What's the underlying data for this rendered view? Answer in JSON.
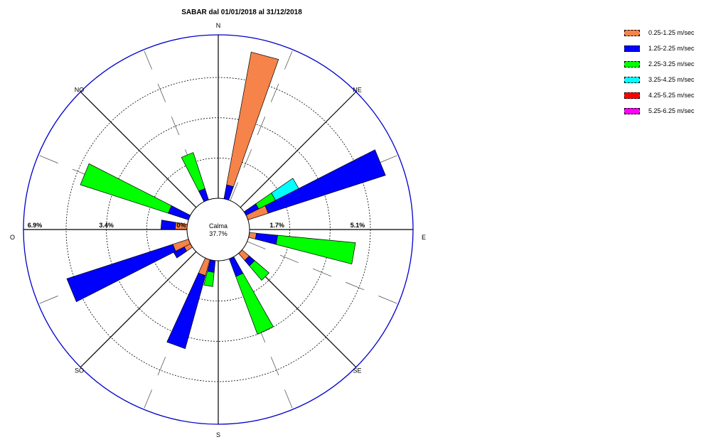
{
  "chart_data": {
    "type": "wind-rose",
    "title": "SABAR dal 01/01/2018 al 31/12/2018",
    "directions": [
      {
        "label": "N",
        "angle": 0
      },
      {
        "label": "NE",
        "angle": 45
      },
      {
        "label": "E",
        "angle": 90
      },
      {
        "label": "SE",
        "angle": 135
      },
      {
        "label": "S",
        "angle": 180
      },
      {
        "label": "SO",
        "angle": 225
      },
      {
        "label": "O",
        "angle": 270
      },
      {
        "label": "NO",
        "angle": 315
      }
    ],
    "radial_ticks_right": [
      "1.7%",
      "5.1%"
    ],
    "radial_ticks_left": [
      "6.9%",
      "3.4%",
      "0%"
    ],
    "calm": {
      "label": "Calma",
      "value": "37.7%"
    },
    "max_percent": 6.9,
    "series": [
      {
        "name": "0.25-1.25 m/sec",
        "color": "#F5834A"
      },
      {
        "name": "1.25-2.25 m/sec",
        "color": "#0000FF"
      },
      {
        "name": "2.25-3.25 m/sec",
        "color": "#00FF00"
      },
      {
        "name": "3.25-4.25 m/sec",
        "color": "#00FFFF"
      },
      {
        "name": "4.25-5.25 m/sec",
        "color": "#FF0000"
      },
      {
        "name": "5.25-6.25 m/sec",
        "color": "#FF00FF"
      }
    ],
    "sectors": [
      {
        "angle": 15,
        "bands": [
          0,
          0.6,
          0,
          0,
          0,
          0,
          5.7
        ]
      },
      {
        "angle": 337.5,
        "bands": [
          0,
          0.5,
          1.6,
          0,
          0,
          0,
          0
        ]
      },
      {
        "angle": 60,
        "bands": [
          0,
          0.6,
          0.8,
          1.1,
          0,
          0,
          0,
          0
        ]
      },
      {
        "angle": 67.5,
        "bands": [
          0.9,
          5.2
        ]
      },
      {
        "angle": 292.5,
        "bands": [
          0,
          0.9,
          3.9
        ]
      },
      {
        "angle": 275,
        "bands": [
          0.5,
          0.6
        ]
      },
      {
        "angle": 100,
        "bands": [
          0.3,
          0.9,
          3.3
        ]
      },
      {
        "angle": 135,
        "bands": [
          0.4,
          0.3,
          0.8
        ]
      },
      {
        "angle": 155,
        "bands": [
          0,
          0.8,
          2.6
        ]
      },
      {
        "angle": 190,
        "bands": [
          0,
          0.5,
          0.6
        ]
      },
      {
        "angle": 200,
        "bands": [
          0.7,
          3.2
        ]
      },
      {
        "angle": 240,
        "bands": [
          0.3,
          0.5
        ]
      },
      {
        "angle": 247.5,
        "bands": [
          0.7,
          4.7
        ]
      }
    ]
  },
  "legend": {
    "items": [
      {
        "label": "0.25-1.25 m/sec",
        "color": "#F5834A"
      },
      {
        "label": "1.25-2.25 m/sec",
        "color": "#0000FF"
      },
      {
        "label": "2.25-3.25 m/sec",
        "color": "#00FF00"
      },
      {
        "label": "3.25-4.25 m/sec",
        "color": "#00FFFF"
      },
      {
        "label": "4.25-5.25 m/sec",
        "color": "#FF0000"
      },
      {
        "label": "5.25-6.25 m/sec",
        "color": "#FF00FF"
      }
    ]
  }
}
